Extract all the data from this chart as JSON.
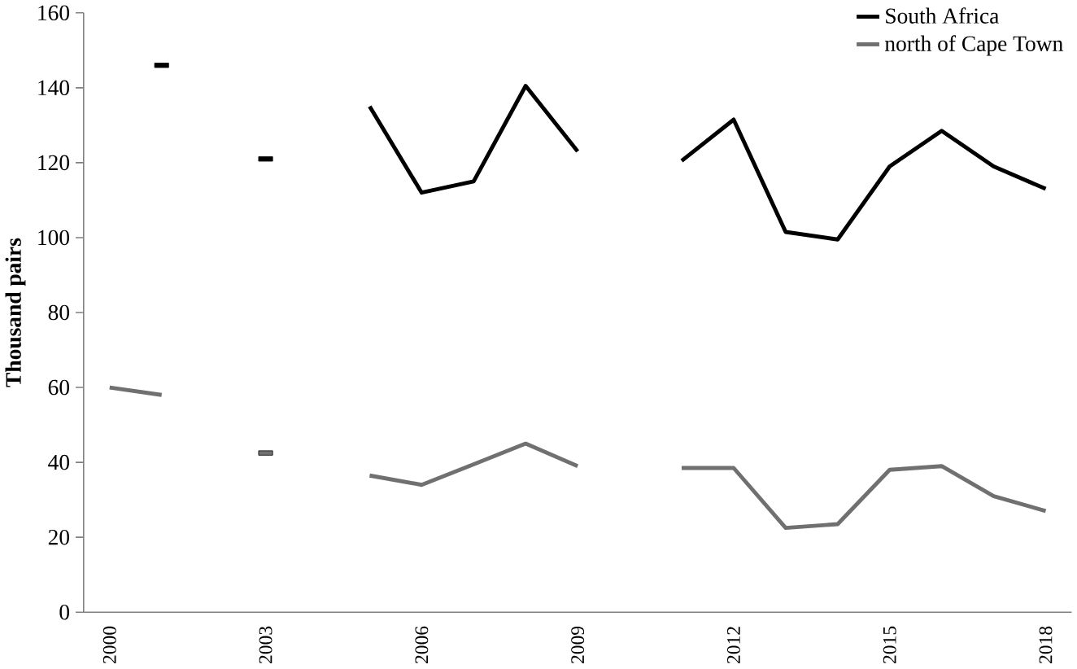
{
  "chart_data": {
    "type": "line",
    "ylabel": "Thousand pairs",
    "categories": [
      "2000",
      null,
      null,
      "2003",
      null,
      null,
      "2006",
      null,
      null,
      "2009",
      null,
      null,
      "2012",
      null,
      null,
      "2015",
      null,
      null,
      "2018"
    ],
    "series": [
      {
        "name": "South Africa",
        "color": "#000000",
        "values": [
          null,
          146,
          null,
          121,
          null,
          135,
          112,
          115,
          140.5,
          123,
          null,
          120.5,
          131.5,
          101.5,
          99.5,
          119,
          128.5,
          119,
          113
        ]
      },
      {
        "name": "north of Cape Town",
        "color": "#707070",
        "values": [
          60,
          58,
          null,
          42.5,
          null,
          36.5,
          34,
          39.5,
          45,
          39,
          null,
          38.5,
          38.5,
          22.5,
          23.5,
          38,
          39,
          31,
          27
        ]
      }
    ],
    "ylim": [
      0,
      160
    ],
    "yticks": [
      0,
      20,
      40,
      60,
      80,
      100,
      120,
      140,
      160
    ],
    "legend": "top right",
    "grid": false,
    "marker": "none",
    "line_style": "solid"
  }
}
